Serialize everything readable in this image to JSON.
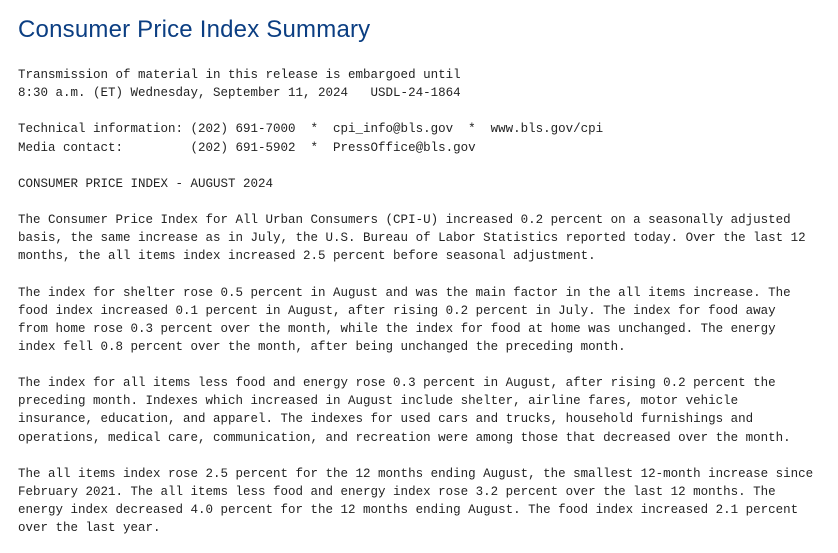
{
  "title": "Consumer Price Index Summary",
  "body_text": "Transmission of material in this release is embargoed until\n8:30 a.m. (ET) Wednesday, September 11, 2024   USDL-24-1864\n\nTechnical information: (202) 691-7000  *  cpi_info@bls.gov  *  www.bls.gov/cpi\nMedia contact:         (202) 691-5902  *  PressOffice@bls.gov\n\nCONSUMER PRICE INDEX - AUGUST 2024\n\nThe Consumer Price Index for All Urban Consumers (CPI-U) increased 0.2 percent on a seasonally adjusted\nbasis, the same increase as in July, the U.S. Bureau of Labor Statistics reported today. Over the last 12\nmonths, the all items index increased 2.5 percent before seasonal adjustment.\n\nThe index for shelter rose 0.5 percent in August and was the main factor in the all items increase. The\nfood index increased 0.1 percent in August, after rising 0.2 percent in July. The index for food away\nfrom home rose 0.3 percent over the month, while the index for food at home was unchanged. The energy\nindex fell 0.8 percent over the month, after being unchanged the preceding month.\n\nThe index for all items less food and energy rose 0.3 percent in August, after rising 0.2 percent the\npreceding month. Indexes which increased in August include shelter, airline fares, motor vehicle\ninsurance, education, and apparel. The indexes for used cars and trucks, household furnishings and\noperations, medical care, communication, and recreation were among those that decreased over the month.\n\nThe all items index rose 2.5 percent for the 12 months ending August, the smallest 12-month increase since\nFebruary 2021. The all items less food and energy index rose 3.2 percent over the last 12 months. The\nenergy index decreased 4.0 percent for the 12 months ending August. The food index increased 2.1 percent\nover the last year."
}
